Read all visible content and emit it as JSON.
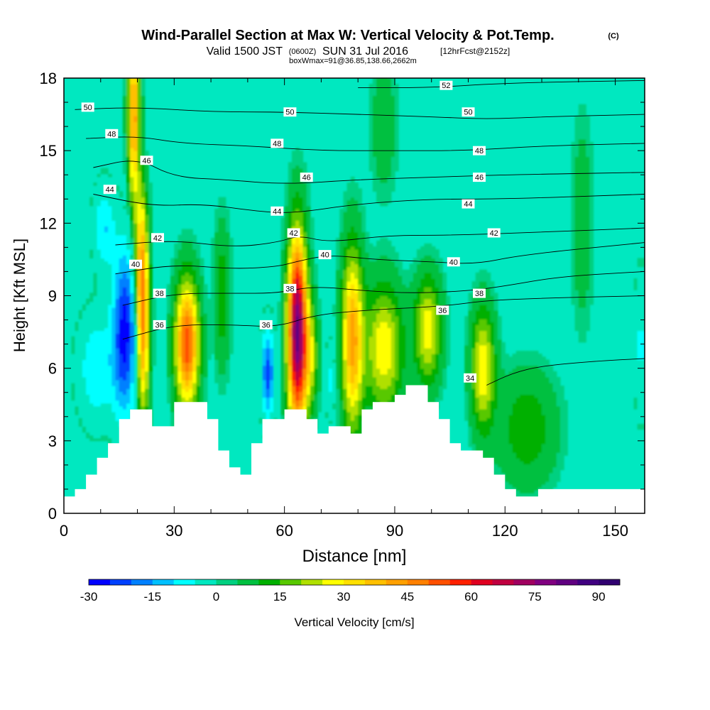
{
  "title": {
    "main": "Wind-Parallel Section at Max W: Vertical Velocity & Pot.Temp.",
    "copyright": "(C)",
    "valid_prefix": "Valid 1500 JST",
    "valid_utc": "(0600Z)",
    "valid_date": "SUN 31 Jul 2016",
    "forecast": "[12hrFcst@2152z]",
    "boxline": "boxWmax=91@36.85,138.66,2662m"
  },
  "chart_data": {
    "type": "heatmap",
    "xlabel": "Distance [nm]",
    "ylabel": "Height [Kft MSL]",
    "xlim": [
      0,
      158
    ],
    "ylim": [
      0,
      18
    ],
    "xticks": [
      0,
      30,
      60,
      90,
      120,
      150
    ],
    "xtick_labels": [
      "0",
      "30",
      "60",
      "90",
      "120",
      "150"
    ],
    "yticks": [
      0,
      3,
      6,
      9,
      12,
      15,
      18
    ],
    "ytick_labels": [
      "0",
      "3",
      "6",
      "9",
      "12",
      "15",
      "18"
    ],
    "background_color": "#00e8c0",
    "colorbar": {
      "label": "Vertical Velocity [cm/s]",
      "min": -30,
      "max": 95,
      "step": 5,
      "tick_values": [
        -30,
        -15,
        0,
        15,
        30,
        45,
        60,
        75,
        90
      ],
      "tick_labels": [
        "-30",
        "-15",
        "0",
        "15",
        "30",
        "45",
        "60",
        "75",
        "90"
      ],
      "colors": [
        "#0000ff",
        "#0040ff",
        "#0080ff",
        "#00c0ff",
        "#00ffff",
        "#00e8c0",
        "#00d080",
        "#00c040",
        "#00b000",
        "#58c800",
        "#b0e000",
        "#ffff00",
        "#ffe000",
        "#ffc000",
        "#ffa000",
        "#ff8000",
        "#ff5000",
        "#ff2000",
        "#e00020",
        "#c00040",
        "#a00060",
        "#800080",
        "#600080",
        "#400080",
        "#300070"
      ]
    },
    "terrain": [
      [
        0,
        0.7
      ],
      [
        3,
        0.7
      ],
      [
        3,
        1.0
      ],
      [
        6,
        1.0
      ],
      [
        6,
        1.6
      ],
      [
        9,
        1.6
      ],
      [
        9,
        2.3
      ],
      [
        12,
        2.3
      ],
      [
        12,
        2.9
      ],
      [
        15,
        2.9
      ],
      [
        15,
        3.9
      ],
      [
        18,
        3.9
      ],
      [
        18,
        4.3
      ],
      [
        24,
        4.3
      ],
      [
        24,
        3.6
      ],
      [
        30,
        3.6
      ],
      [
        30,
        4.6
      ],
      [
        39,
        4.6
      ],
      [
        39,
        3.9
      ],
      [
        42,
        3.9
      ],
      [
        42,
        2.6
      ],
      [
        45,
        2.6
      ],
      [
        45,
        1.9
      ],
      [
        48,
        1.9
      ],
      [
        48,
        1.6
      ],
      [
        51,
        1.6
      ],
      [
        51,
        2.9
      ],
      [
        54,
        2.9
      ],
      [
        54,
        3.9
      ],
      [
        57,
        3.9
      ],
      [
        57,
        3.9
      ],
      [
        60,
        3.9
      ],
      [
        60,
        4.3
      ],
      [
        66,
        4.3
      ],
      [
        66,
        3.9
      ],
      [
        69,
        3.9
      ],
      [
        69,
        3.3
      ],
      [
        72,
        3.3
      ],
      [
        72,
        3.6
      ],
      [
        78,
        3.6
      ],
      [
        78,
        3.3
      ],
      [
        81,
        3.3
      ],
      [
        81,
        4.3
      ],
      [
        84,
        4.3
      ],
      [
        84,
        4.6
      ],
      [
        90,
        4.6
      ],
      [
        90,
        4.9
      ],
      [
        93,
        4.9
      ],
      [
        93,
        5.3
      ],
      [
        99,
        5.3
      ],
      [
        99,
        4.6
      ],
      [
        102,
        4.6
      ],
      [
        102,
        3.9
      ],
      [
        105,
        3.9
      ],
      [
        105,
        2.9
      ],
      [
        108,
        2.9
      ],
      [
        108,
        2.6
      ],
      [
        114,
        2.6
      ],
      [
        114,
        2.3
      ],
      [
        117,
        2.3
      ],
      [
        117,
        1.6
      ],
      [
        120,
        1.6
      ],
      [
        120,
        1.0
      ],
      [
        123,
        1.0
      ],
      [
        123,
        0.7
      ],
      [
        129,
        0.7
      ],
      [
        129,
        1.0
      ],
      [
        158,
        1.0
      ]
    ],
    "velocity_features": [
      {
        "x": 16.5,
        "y": 7.5,
        "sx": 2.2,
        "sy": 2.3,
        "value": -30
      },
      {
        "x": 9,
        "y": 6.0,
        "sx": 3.5,
        "sy": 1.5,
        "value": -12
      },
      {
        "x": 11,
        "y": 11.8,
        "sx": 2,
        "sy": 1.2,
        "value": -12
      },
      {
        "x": 19,
        "y": 16.5,
        "sx": 1.1,
        "sy": 2.5,
        "value": 42
      },
      {
        "x": 21,
        "y": 11.0,
        "sx": 1.2,
        "sy": 2,
        "value": 25
      },
      {
        "x": 21.5,
        "y": 7.5,
        "sx": 1.2,
        "sy": 2.5,
        "value": 40
      },
      {
        "x": 33.5,
        "y": 7.0,
        "sx": 2.2,
        "sy": 1.8,
        "value": 52
      },
      {
        "x": 43,
        "y": 9.0,
        "sx": 1.5,
        "sy": 2,
        "value": 12
      },
      {
        "x": 55.5,
        "y": 5.8,
        "sx": 1.2,
        "sy": 1.2,
        "value": -25
      },
      {
        "x": 63.5,
        "y": 7.5,
        "sx": 1.8,
        "sy": 2.7,
        "value": 80
      },
      {
        "x": 67,
        "y": 6.5,
        "sx": 1.5,
        "sy": 1.5,
        "value": 20
      },
      {
        "x": 72.5,
        "y": 5.5,
        "sx": 1,
        "sy": 1,
        "value": -8
      },
      {
        "x": 78.5,
        "y": 7.2,
        "sx": 2.0,
        "sy": 2.6,
        "value": 40
      },
      {
        "x": 87,
        "y": 6.8,
        "sx": 3.5,
        "sy": 1.8,
        "value": 28
      },
      {
        "x": 99,
        "y": 7.6,
        "sx": 2.5,
        "sy": 1.5,
        "value": 27
      },
      {
        "x": 114,
        "y": 6.0,
        "sx": 2.2,
        "sy": 1.7,
        "value": 28
      },
      {
        "x": 126,
        "y": 3.5,
        "sx": 5.5,
        "sy": 1.6,
        "value": 12
      },
      {
        "x": 157,
        "y": 7.0,
        "sx": 1.2,
        "sy": 2,
        "value": -8
      },
      {
        "x": 141,
        "y": 12.0,
        "sx": 2,
        "sy": 3,
        "value": 6
      },
      {
        "x": 87,
        "y": 16.0,
        "sx": 2.5,
        "sy": 2,
        "value": 6
      }
    ],
    "theta_contours": [
      {
        "value": 34,
        "pts": [
          [
            115,
            5.3
          ],
          [
            122,
            5.8
          ],
          [
            130,
            6.1
          ],
          [
            145,
            6.3
          ],
          [
            158,
            6.4
          ]
        ],
        "label_at": [
          110.5,
          5.6
        ]
      },
      {
        "value": 36,
        "pts": [
          [
            16,
            7.2
          ],
          [
            30,
            7.8
          ],
          [
            46,
            7.8
          ],
          [
            58,
            7.7
          ],
          [
            68,
            8.2
          ],
          [
            82,
            8.4
          ],
          [
            95,
            8.5
          ],
          [
            105,
            8.6
          ],
          [
            115,
            8.8
          ],
          [
            130,
            8.9
          ],
          [
            158,
            9.0
          ]
        ],
        "label_at": [
          26,
          7.8
        ]
      },
      {
        "value": 38,
        "pts": [
          [
            16,
            8.6
          ],
          [
            30,
            9.1
          ],
          [
            46,
            9.1
          ],
          [
            58,
            9.1
          ],
          [
            68,
            9.4
          ],
          [
            82,
            9.2
          ],
          [
            95,
            9.1
          ],
          [
            110,
            9.2
          ],
          [
            120,
            9.4
          ],
          [
            135,
            9.8
          ],
          [
            158,
            10.0
          ]
        ],
        "label_at": [
          26,
          9.1
        ]
      },
      {
        "value": 40,
        "pts": [
          [
            14,
            9.9
          ],
          [
            30,
            10.3
          ],
          [
            46,
            10.1
          ],
          [
            58,
            10.2
          ],
          [
            63,
            10.4
          ],
          [
            72,
            10.7
          ],
          [
            84,
            10.5
          ],
          [
            100,
            10.4
          ],
          [
            112,
            10.3
          ],
          [
            125,
            10.7
          ],
          [
            158,
            11.2
          ]
        ],
        "label_at": [
          19.5,
          10.3
        ]
      },
      {
        "value": 42,
        "pts": [
          [
            14,
            11.1
          ],
          [
            30,
            11.3
          ],
          [
            46,
            11.0
          ],
          [
            58,
            11.2
          ],
          [
            64,
            11.5
          ],
          [
            72,
            11.2
          ],
          [
            88,
            11.5
          ],
          [
            105,
            11.5
          ],
          [
            125,
            11.6
          ],
          [
            158,
            11.8
          ]
        ],
        "label_at": [
          25.5,
          11.4
        ]
      },
      {
        "value": 44,
        "pts": [
          [
            8,
            13.2
          ],
          [
            24,
            12.7
          ],
          [
            38,
            12.8
          ],
          [
            52,
            12.5
          ],
          [
            62,
            12.4
          ],
          [
            80,
            12.8
          ],
          [
            100,
            13.0
          ],
          [
            120,
            13.0
          ],
          [
            158,
            13.2
          ]
        ],
        "label_at": [
          12.5,
          13.4
        ]
      },
      {
        "value": 46,
        "pts": [
          [
            8,
            14.3
          ],
          [
            20,
            14.7
          ],
          [
            30,
            13.9
          ],
          [
            44,
            13.8
          ],
          [
            60,
            13.6
          ],
          [
            80,
            13.8
          ],
          [
            100,
            13.9
          ],
          [
            120,
            14.0
          ],
          [
            158,
            14.1
          ]
        ],
        "label_at": [
          22.5,
          14.6
        ]
      },
      {
        "value": 48,
        "pts": [
          [
            6,
            15.5
          ],
          [
            20,
            15.6
          ],
          [
            32,
            15.3
          ],
          [
            50,
            15.2
          ],
          [
            70,
            15.0
          ],
          [
            90,
            15.0
          ],
          [
            110,
            15.0
          ],
          [
            130,
            15.2
          ],
          [
            158,
            15.3
          ]
        ],
        "label_at": [
          13,
          15.7
        ]
      },
      {
        "value": 50,
        "pts": [
          [
            3,
            16.7
          ],
          [
            20,
            16.8
          ],
          [
            40,
            16.6
          ],
          [
            60,
            16.6
          ],
          [
            80,
            16.5
          ],
          [
            100,
            16.4
          ],
          [
            115,
            16.3
          ],
          [
            130,
            16.4
          ],
          [
            158,
            16.5
          ]
        ],
        "label_at": [
          6.5,
          16.8
        ]
      },
      {
        "value": 52,
        "pts": [
          [
            80,
            17.6
          ],
          [
            100,
            17.6
          ],
          [
            120,
            17.8
          ],
          [
            158,
            17.9
          ]
        ],
        "label_at": [
          104,
          17.7
        ]
      }
    ],
    "theta_labels": [
      {
        "text": "50",
        "x": 6.5,
        "y": 16.8
      },
      {
        "text": "48",
        "x": 13,
        "y": 15.7
      },
      {
        "text": "46",
        "x": 22.5,
        "y": 14.6
      },
      {
        "text": "44",
        "x": 12.5,
        "y": 13.4
      },
      {
        "text": "42",
        "x": 25.5,
        "y": 11.4
      },
      {
        "text": "40",
        "x": 19.5,
        "y": 10.3
      },
      {
        "text": "38",
        "x": 26,
        "y": 9.1
      },
      {
        "text": "36",
        "x": 26,
        "y": 7.8
      },
      {
        "text": "50",
        "x": 61.5,
        "y": 16.6
      },
      {
        "text": "48",
        "x": 58,
        "y": 15.3
      },
      {
        "text": "46",
        "x": 66,
        "y": 13.9
      },
      {
        "text": "44",
        "x": 58,
        "y": 12.5
      },
      {
        "text": "42",
        "x": 62.5,
        "y": 11.6
      },
      {
        "text": "40",
        "x": 71,
        "y": 10.7
      },
      {
        "text": "38",
        "x": 61.5,
        "y": 9.3
      },
      {
        "text": "36",
        "x": 55,
        "y": 7.8
      },
      {
        "text": "52",
        "x": 104,
        "y": 17.7
      },
      {
        "text": "50",
        "x": 110,
        "y": 16.6
      },
      {
        "text": "48",
        "x": 113,
        "y": 15.0
      },
      {
        "text": "46",
        "x": 113,
        "y": 13.9
      },
      {
        "text": "44",
        "x": 110,
        "y": 12.8
      },
      {
        "text": "42",
        "x": 117,
        "y": 11.6
      },
      {
        "text": "40",
        "x": 106,
        "y": 10.4
      },
      {
        "text": "38",
        "x": 113,
        "y": 9.1
      },
      {
        "text": "36",
        "x": 103,
        "y": 8.4
      },
      {
        "text": "34",
        "x": 110.5,
        "y": 5.6
      }
    ]
  }
}
